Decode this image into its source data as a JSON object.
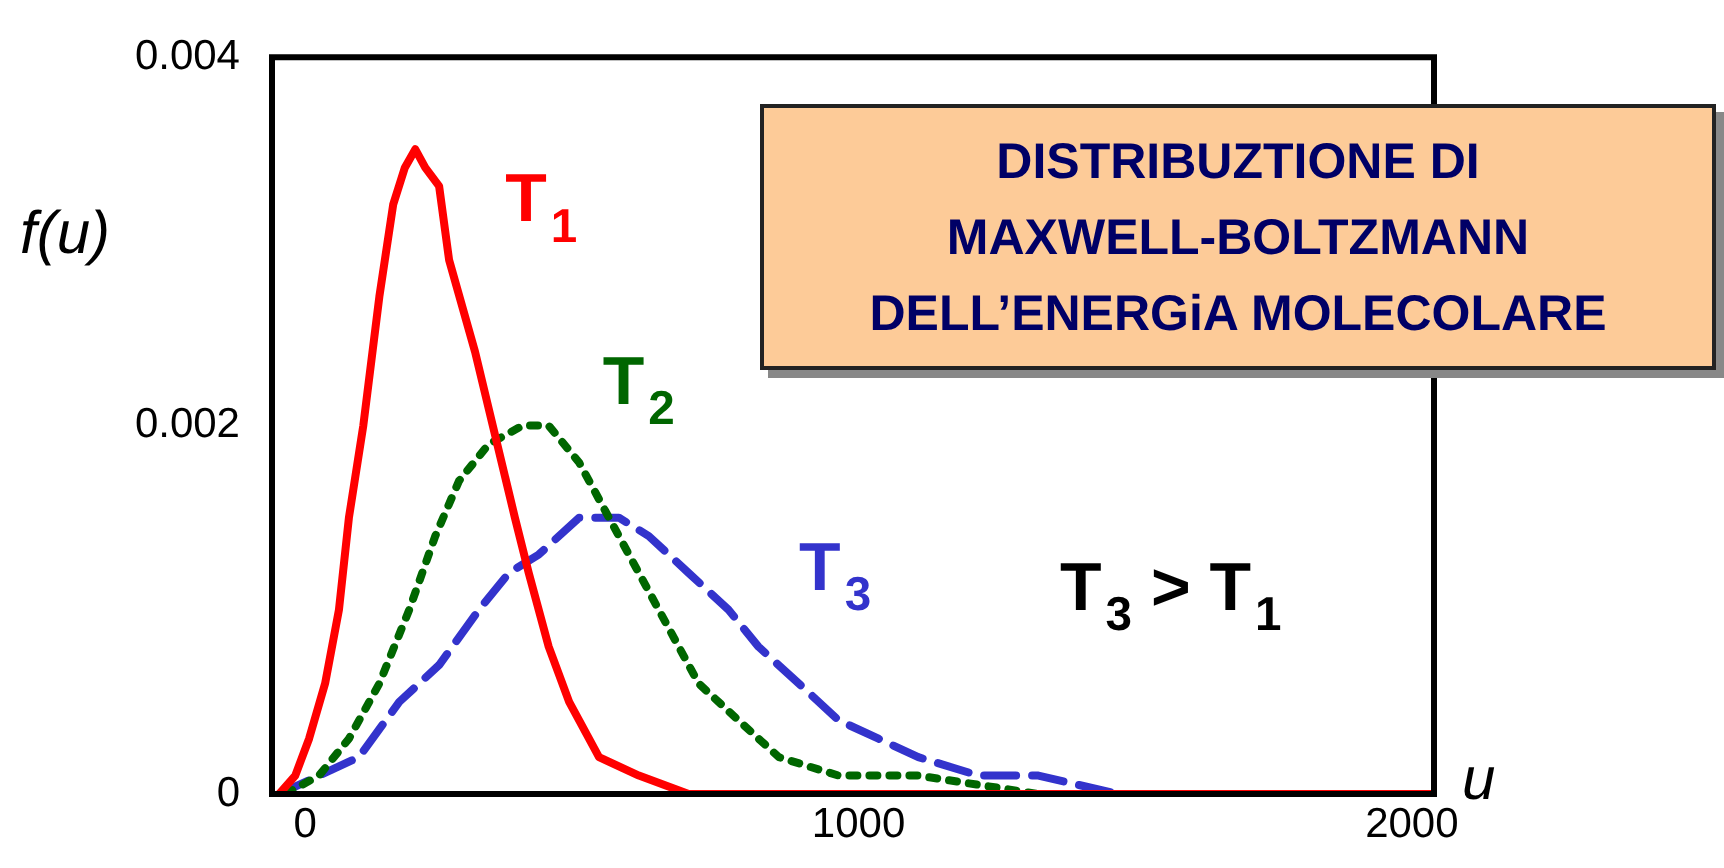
{
  "chart_data": {
    "type": "line",
    "title": "DISTRIBUZTIONE DI\nMAXWELL-BOLTZMANN\nDELL’ENERGiA MOLECOLARE",
    "xlabel": "u",
    "ylabel": "f(u)",
    "xlim": [
      -60,
      2040
    ],
    "xticks": [
      0,
      1000,
      2000
    ],
    "ylim": [
      0,
      0.004
    ],
    "yticks": [
      0,
      0.002,
      0.004
    ],
    "grid": false,
    "legend": false,
    "marker": "none",
    "annotations": [
      "T$_{3}$ > T$_{1}$"
    ],
    "series": [
      {
        "name": "T$_{1}$",
        "color": "#ff0000",
        "line_style": "solid",
        "x": [
          -47,
          -18,
          7,
          36,
          61,
          79,
          105,
          134,
          159,
          180,
          199,
          217,
          242,
          260,
          307,
          339,
          379,
          404,
          440,
          477,
          531,
          603,
          693,
          892,
          2036
        ],
        "values": [
          0,
          0.0001,
          0.0003,
          0.0006,
          0.001,
          0.0015,
          0.002,
          0.0027,
          0.0032,
          0.0034,
          0.0035,
          0.0034,
          0.0033,
          0.0029,
          0.0024,
          0.002,
          0.0015,
          0.0012,
          0.0008,
          0.0005,
          0.0002,
          0.0001,
          0,
          0,
          0
        ]
      },
      {
        "name": "T$_{2}$",
        "color": "#006600",
        "line_style": "dotted",
        "x": [
          -36,
          25,
          79,
          134,
          188,
          235,
          278,
          332,
          393,
          440,
          495,
          549,
          603,
          657,
          711,
          783,
          856,
          964,
          1108,
          1325,
          1614,
          2036
        ],
        "values": [
          0,
          0.0001,
          0.0003,
          0.0006,
          0.001,
          0.0014,
          0.0017,
          0.0019,
          0.002,
          0.002,
          0.0018,
          0.0015,
          0.0012,
          0.0009,
          0.0006,
          0.0004,
          0.0002,
          0.0001,
          0.0001,
          0,
          0,
          0
        ]
      },
      {
        "name": "T$_{3}$",
        "color": "#3333cc",
        "line_style": "dashed",
        "x": [
          -47,
          25,
          97,
          170,
          242,
          314,
          368,
          422,
          495,
          531,
          567,
          621,
          693,
          765,
          819,
          892,
          964,
          1036,
          1108,
          1217,
          1325,
          1469,
          2036
        ],
        "values": [
          0,
          0.0001,
          0.0002,
          0.0005,
          0.0007,
          0.001,
          0.0012,
          0.0013,
          0.0015,
          0.0015,
          0.0015,
          0.0014,
          0.0012,
          0.001,
          0.0008,
          0.0006,
          0.0004,
          0.0003,
          0.0002,
          0.0001,
          0.0001,
          0,
          0
        ]
      }
    ]
  }
}
